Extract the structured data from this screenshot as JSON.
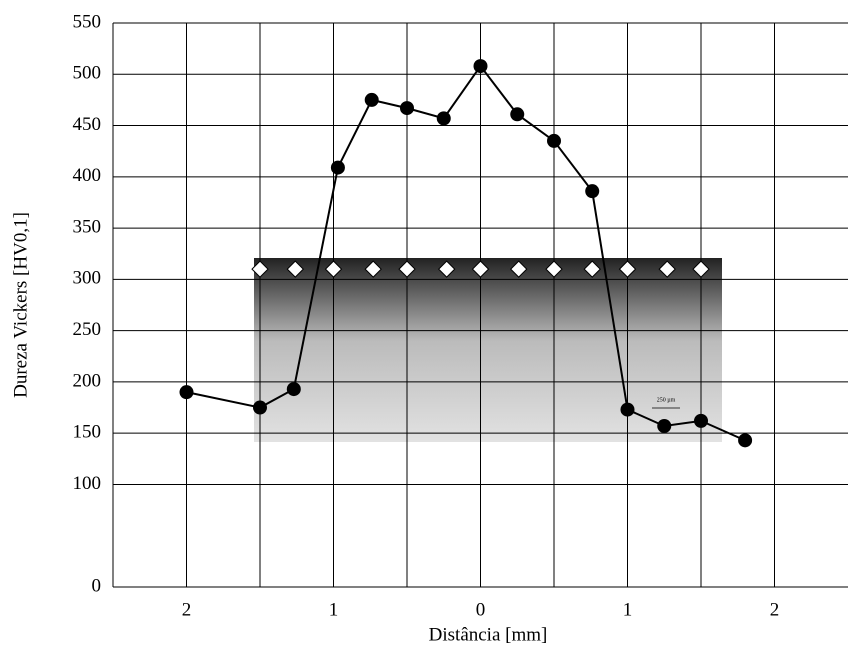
{
  "chart_data": {
    "type": "line",
    "x_label": "Distância [mm]",
    "y_label": "Dureza Vickers [HV0,1]",
    "annotation": "250 µm",
    "xlim": [
      -2.5,
      2.5
    ],
    "xticks": [
      {
        "value": -2,
        "label": "2"
      },
      {
        "value": -1,
        "label": "1"
      },
      0,
      1,
      2
    ],
    "xminor": [
      -1.5,
      -0.5,
      0.5,
      1.5
    ],
    "ylim": [
      0,
      550
    ],
    "yticks": [
      0,
      100,
      150,
      200,
      250,
      300,
      350,
      400,
      450,
      500,
      550
    ],
    "grid": true,
    "series": [
      {
        "color": "#000000",
        "marker": "circle",
        "line": true,
        "x": [
          -2.0,
          -1.5,
          -1.27,
          -0.97,
          -0.74,
          -0.5,
          -0.25,
          0,
          0.25,
          0.5,
          0.76,
          1.0,
          1.25,
          1.5,
          1.8
        ],
        "values": [
          190,
          175,
          193,
          409,
          475,
          467,
          457,
          508,
          461,
          435,
          386,
          173,
          157,
          162,
          143
        ]
      },
      {
        "color": "#000000",
        "marker": "diamond",
        "line": false,
        "x": [
          -1.5,
          -1.26,
          -1.0,
          -0.73,
          -0.5,
          -0.23,
          0,
          0.26,
          0.5,
          0.76,
          1.0,
          1.27,
          1.5
        ],
        "values": [
          310,
          310,
          310,
          310,
          310,
          310,
          310,
          310,
          310,
          310,
          310,
          310,
          310
        ]
      }
    ]
  }
}
